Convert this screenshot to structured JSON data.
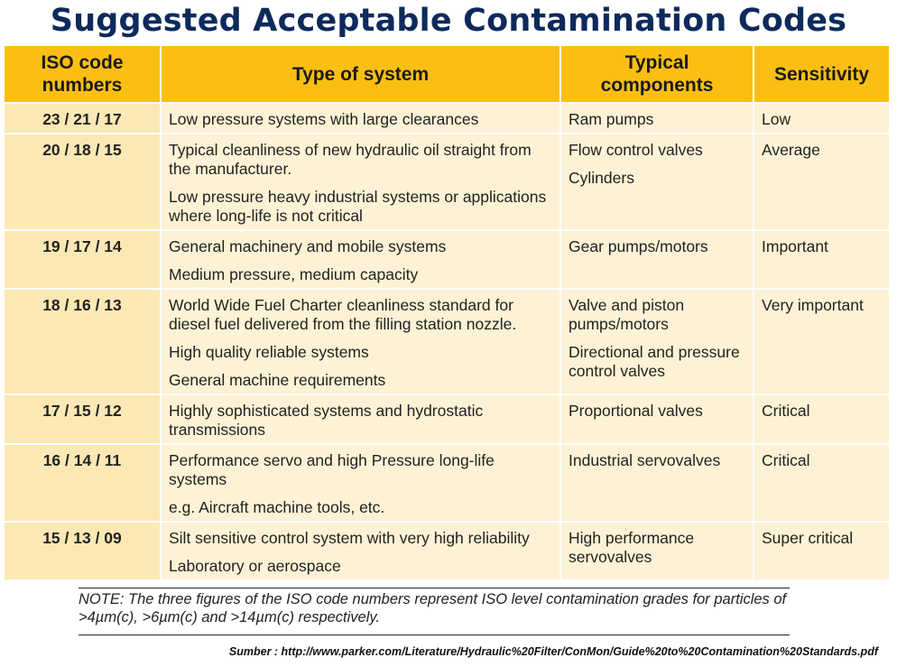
{
  "title": "Suggested Acceptable Contamination Codes",
  "colors": {
    "header_bg": "#fbbf13",
    "code_bg": "#fce8b5",
    "cell_bg": "#fdf2d5",
    "title_color": "#0d2a5c"
  },
  "table": {
    "headers": [
      "ISO code numbers",
      "Type of system",
      "Typical components",
      "Sensitivity"
    ],
    "rows": [
      {
        "code": "23 / 21 / 17",
        "systems": [
          "Low pressure systems with large clearances"
        ],
        "components": [
          "Ram pumps"
        ],
        "sensitivity": "Low"
      },
      {
        "code": "20 / 18 / 15",
        "systems": [
          "Typical cleanliness of new hydraulic oil straight from the manufacturer.",
          "Low pressure heavy industrial systems or applications where long-life is not critical"
        ],
        "components": [
          "Flow control valves",
          "Cylinders"
        ],
        "sensitivity": "Average"
      },
      {
        "code": "19 / 17 / 14",
        "systems": [
          "General machinery and mobile systems",
          "Medium pressure, medium capacity"
        ],
        "components": [
          "Gear pumps/motors"
        ],
        "sensitivity": "Important"
      },
      {
        "code": "18 / 16 / 13",
        "systems": [
          "World Wide Fuel Charter cleanliness standard for diesel fuel delivered from the filling station nozzle.",
          "High quality reliable systems",
          "General machine requirements"
        ],
        "components": [
          "Valve and piston pumps/motors",
          "Directional and pressure control valves"
        ],
        "sensitivity": "Very important"
      },
      {
        "code": "17 / 15 / 12",
        "systems": [
          "Highly sophisticated systems and hydrostatic transmissions"
        ],
        "components": [
          "Proportional valves"
        ],
        "sensitivity": "Critical"
      },
      {
        "code": "16 / 14 / 11",
        "systems": [
          "Performance servo and high Pressure long-life systems",
          "e.g. Aircraft machine tools, etc."
        ],
        "components": [
          "Industrial servovalves"
        ],
        "sensitivity": "Critical"
      },
      {
        "code": "15 / 13 / 09",
        "systems": [
          "Silt sensitive control system with very high reliability",
          "Laboratory or aerospace"
        ],
        "components": [
          "High performance servovalves"
        ],
        "sensitivity": "Super critical"
      }
    ]
  },
  "note": "NOTE: The three figures of the ISO code numbers represent ISO level contamination grades for particles of >4µm(c), >6µm(c) and >14µm(c) respectively.",
  "source": "Sumber : http://www.parker.com/Literature/Hydraulic%20Filter/ConMon/Guide%20to%20Contamination%20Standards.pdf"
}
